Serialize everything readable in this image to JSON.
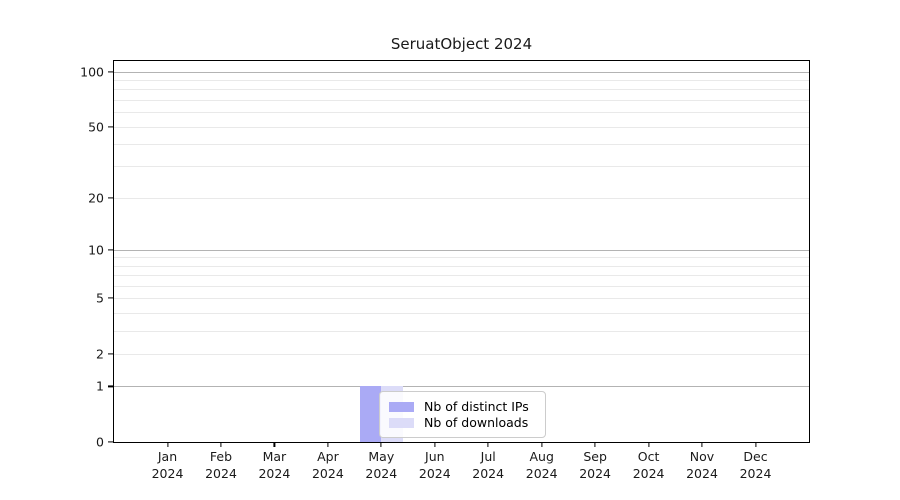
{
  "chart_data": {
    "type": "bar",
    "title": "SeruatObject 2024",
    "categories": [
      "Jan",
      "Feb",
      "Mar",
      "Apr",
      "May",
      "Jun",
      "Jul",
      "Aug",
      "Sep",
      "Oct",
      "Nov",
      "Dec"
    ],
    "year_label": "2024",
    "series": [
      {
        "name": "Nb of distinct IPs",
        "color": "#aaaaf5",
        "values": [
          0,
          0,
          0,
          0,
          1,
          0,
          0,
          0,
          0,
          0,
          0,
          0
        ]
      },
      {
        "name": "Nb of downloads",
        "color": "#dcdcf8",
        "values": [
          0,
          0,
          0,
          0,
          1,
          0,
          0,
          0,
          0,
          0,
          0,
          0
        ]
      }
    ],
    "xlabel": "",
    "ylabel": "",
    "yscale": "log1p",
    "ylim": [
      0,
      114.3
    ],
    "yticks": [
      0,
      1,
      2,
      5,
      10,
      20,
      50,
      100
    ],
    "grid": {
      "on": true,
      "major_values": [
        1,
        10,
        100
      ],
      "minor_values": [
        2,
        3,
        4,
        5,
        6,
        7,
        8,
        9,
        20,
        30,
        40,
        50,
        60,
        70,
        80,
        90
      ],
      "major_color": "#b3b3b3",
      "minor_color": "#e9e9e9"
    },
    "legend": {
      "position": "lower center-left, overlapping May bars",
      "border_color": "#cccccc",
      "entries": [
        "Nb of distinct IPs",
        "Nb of downloads"
      ]
    },
    "bar_color_accent": "#aaaaf5",
    "bar_color_light": "#dcdcf8"
  }
}
